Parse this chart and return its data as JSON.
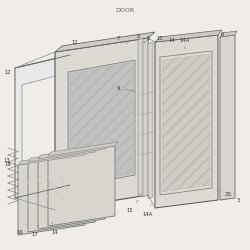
{
  "title": "DOOR",
  "title_fontsize": 4.5,
  "title_color": "#666666",
  "bg_color": "#f0ede8",
  "line_color": "#888888",
  "dark_line": "#555555",
  "label_fontsize": 3.8,
  "label_color": "#333333"
}
